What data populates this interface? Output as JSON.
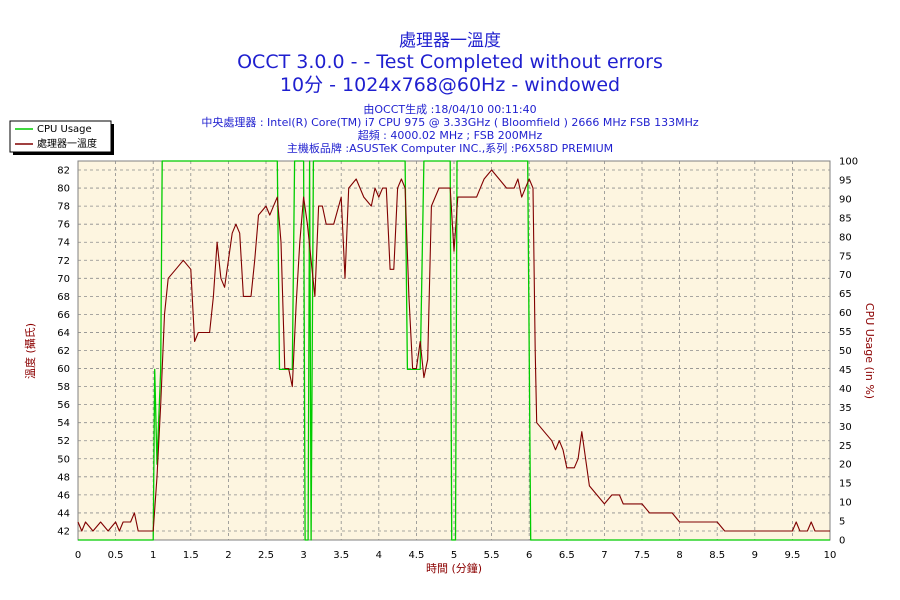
{
  "header": {
    "title_line1": "處理器一溫度",
    "title_line2": "OCCT 3.0.0 -  - Test Completed without errors",
    "title_line3": "10分 - 1024x768@60Hz - windowed",
    "info_line1": "由OCCT生成 :18/04/10 00:11:40",
    "info_line2": "中央處理器 : Intel(R) Core(TM) i7 CPU 975 @ 3.33GHz ( Bloomfield ) 2666 MHz FSB 133MHz",
    "info_line3": "超頻 : 4000.02 MHz ; FSB 200MHz",
    "info_line4": "主機板品牌 :ASUSTeK Computer INC.,系列 :P6X58D PREMIUM"
  },
  "colors": {
    "plot_bg": "#fdf5e0",
    "grid": "#8c8c8c",
    "temp_line": "#800000",
    "cpu_line": "#00cc00",
    "title_text": "#1f1fcf",
    "axis_label": "#8b0000"
  },
  "chart_data": {
    "type": "line",
    "xlabel": "時間 (分鐘)",
    "ylabel": "溫度 (攝氏)",
    "y2label": "CPU Usage (in %)",
    "xlim": [
      0,
      10
    ],
    "ylim": [
      41,
      83
    ],
    "y2lim": [
      0,
      100
    ],
    "x_ticks": [
      "0",
      "0.5",
      "1",
      "1.5",
      "2",
      "2.5",
      "3",
      "3.5",
      "4",
      "4.5",
      "5",
      "5.5",
      "6",
      "6.5",
      "7",
      "7.5",
      "8",
      "8.5",
      "9",
      "9.5",
      "10"
    ],
    "y_ticks": [
      "42",
      "44",
      "46",
      "48",
      "50",
      "52",
      "54",
      "56",
      "58",
      "60",
      "62",
      "64",
      "66",
      "68",
      "70",
      "72",
      "74",
      "76",
      "78",
      "80",
      "82"
    ],
    "y2_ticks": [
      "0",
      "5",
      "10",
      "15",
      "20",
      "25",
      "30",
      "35",
      "40",
      "45",
      "50",
      "55",
      "60",
      "65",
      "70",
      "75",
      "80",
      "85",
      "90",
      "95",
      "100"
    ],
    "grid": true,
    "legend_position": "top-left",
    "series": [
      {
        "name": "CPU Usage",
        "axis": "right",
        "points": [
          [
            0,
            0
          ],
          [
            1.0,
            0
          ],
          [
            1.02,
            45
          ],
          [
            1.05,
            20
          ],
          [
            1.1,
            45
          ],
          [
            1.12,
            100
          ],
          [
            1.15,
            100
          ],
          [
            2.65,
            100
          ],
          [
            2.68,
            45
          ],
          [
            2.85,
            45
          ],
          [
            2.88,
            100
          ],
          [
            3.0,
            100
          ],
          [
            3.02,
            0
          ],
          [
            3.06,
            0
          ],
          [
            3.08,
            100
          ],
          [
            3.1,
            0
          ],
          [
            3.13,
            100
          ],
          [
            4.35,
            100
          ],
          [
            4.38,
            45
          ],
          [
            4.55,
            45
          ],
          [
            4.6,
            100
          ],
          [
            4.95,
            100
          ],
          [
            4.97,
            0
          ],
          [
            5.02,
            0
          ],
          [
            5.04,
            100
          ],
          [
            5.98,
            100
          ],
          [
            6.02,
            0
          ],
          [
            10,
            0
          ]
        ]
      },
      {
        "name": "處理器一溫度",
        "axis": "left",
        "points": [
          [
            0,
            43
          ],
          [
            0.05,
            42
          ],
          [
            0.1,
            43
          ],
          [
            0.2,
            42
          ],
          [
            0.3,
            43
          ],
          [
            0.4,
            42
          ],
          [
            0.5,
            43
          ],
          [
            0.55,
            42
          ],
          [
            0.6,
            43
          ],
          [
            0.7,
            43
          ],
          [
            0.75,
            44
          ],
          [
            0.8,
            42
          ],
          [
            1.0,
            42
          ],
          [
            1.05,
            48
          ],
          [
            1.1,
            56
          ],
          [
            1.15,
            66
          ],
          [
            1.2,
            70
          ],
          [
            1.3,
            71
          ],
          [
            1.4,
            72
          ],
          [
            1.5,
            71
          ],
          [
            1.55,
            63
          ],
          [
            1.6,
            64
          ],
          [
            1.75,
            64
          ],
          [
            1.8,
            68
          ],
          [
            1.85,
            74
          ],
          [
            1.9,
            70
          ],
          [
            1.95,
            69
          ],
          [
            2.0,
            72
          ],
          [
            2.05,
            75
          ],
          [
            2.1,
            76
          ],
          [
            2.15,
            75
          ],
          [
            2.2,
            68
          ],
          [
            2.3,
            68
          ],
          [
            2.35,
            72
          ],
          [
            2.4,
            77
          ],
          [
            2.5,
            78
          ],
          [
            2.55,
            77
          ],
          [
            2.6,
            78
          ],
          [
            2.65,
            79
          ],
          [
            2.7,
            74
          ],
          [
            2.75,
            60
          ],
          [
            2.8,
            60
          ],
          [
            2.85,
            58
          ],
          [
            2.9,
            67
          ],
          [
            2.95,
            74
          ],
          [
            3.0,
            79
          ],
          [
            3.05,
            76
          ],
          [
            3.1,
            72
          ],
          [
            3.15,
            68
          ],
          [
            3.2,
            78
          ],
          [
            3.25,
            78
          ],
          [
            3.3,
            76
          ],
          [
            3.4,
            76
          ],
          [
            3.5,
            79
          ],
          [
            3.55,
            70
          ],
          [
            3.6,
            80
          ],
          [
            3.7,
            81
          ],
          [
            3.8,
            79
          ],
          [
            3.9,
            78
          ],
          [
            3.95,
            80
          ],
          [
            4.0,
            79
          ],
          [
            4.05,
            80
          ],
          [
            4.1,
            80
          ],
          [
            4.15,
            71
          ],
          [
            4.2,
            71
          ],
          [
            4.25,
            80
          ],
          [
            4.3,
            81
          ],
          [
            4.35,
            80
          ],
          [
            4.4,
            68
          ],
          [
            4.45,
            60
          ],
          [
            4.5,
            60
          ],
          [
            4.55,
            63
          ],
          [
            4.6,
            59
          ],
          [
            4.65,
            61
          ],
          [
            4.7,
            78
          ],
          [
            4.8,
            80
          ],
          [
            4.9,
            80
          ],
          [
            4.95,
            80
          ],
          [
            5.0,
            73
          ],
          [
            5.05,
            79
          ],
          [
            5.1,
            79
          ],
          [
            5.3,
            79
          ],
          [
            5.35,
            80
          ],
          [
            5.4,
            81
          ],
          [
            5.5,
            82
          ],
          [
            5.6,
            81
          ],
          [
            5.7,
            80
          ],
          [
            5.75,
            80
          ],
          [
            5.8,
            80
          ],
          [
            5.85,
            81
          ],
          [
            5.9,
            79
          ],
          [
            6.0,
            81
          ],
          [
            6.05,
            80
          ],
          [
            6.08,
            62
          ],
          [
            6.1,
            54
          ],
          [
            6.2,
            53
          ],
          [
            6.3,
            52
          ],
          [
            6.35,
            51
          ],
          [
            6.4,
            52
          ],
          [
            6.45,
            51
          ],
          [
            6.5,
            49
          ],
          [
            6.6,
            49
          ],
          [
            6.65,
            50
          ],
          [
            6.7,
            53
          ],
          [
            6.75,
            50
          ],
          [
            6.8,
            47
          ],
          [
            6.9,
            46
          ],
          [
            7.0,
            45
          ],
          [
            7.1,
            46
          ],
          [
            7.2,
            46
          ],
          [
            7.25,
            45
          ],
          [
            7.5,
            45
          ],
          [
            7.6,
            44
          ],
          [
            7.9,
            44
          ],
          [
            8.0,
            43
          ],
          [
            8.5,
            43
          ],
          [
            8.6,
            42
          ],
          [
            9.5,
            42
          ],
          [
            9.55,
            43
          ],
          [
            9.6,
            42
          ],
          [
            9.7,
            42
          ],
          [
            9.75,
            43
          ],
          [
            9.8,
            42
          ],
          [
            10,
            42
          ]
        ]
      }
    ]
  }
}
